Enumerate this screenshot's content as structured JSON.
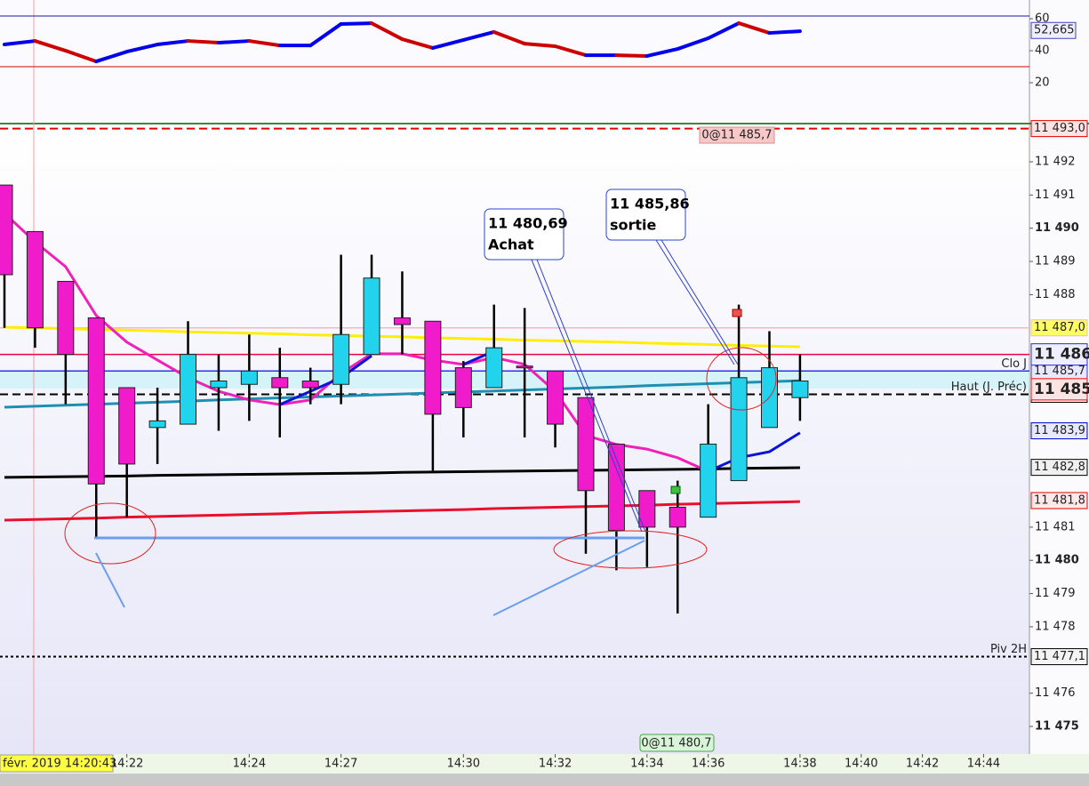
{
  "chart_data": [
    {
      "type": "line",
      "values": [
        43.9,
        46.1,
        40.0,
        33.3,
        39.4,
        43.9,
        46.1,
        45.0,
        46.1,
        43.3,
        43.3,
        56.7,
        57.2,
        47.2,
        41.7,
        46.7,
        51.7,
        44.4,
        42.8,
        37.2,
        37.2,
        36.7,
        41.1,
        47.8,
        57.2,
        51.1,
        52.2
      ],
      "up_color": "#0000ee",
      "down_color": "#cc0000",
      "ylim": [
        -5,
        71.7
      ],
      "yticks": [
        20,
        40,
        60
      ],
      "hlines": [
        {
          "value": 61.7,
          "color": "#1a1a9a"
        },
        {
          "value": 30,
          "color": "#cc0000"
        }
      ],
      "current": {
        "value": 52.665,
        "label": "52,665"
      }
    },
    {
      "type": "candlestick",
      "categories": [
        null,
        null,
        null,
        null,
        "14:22",
        null,
        null,
        null,
        "14:24",
        null,
        null,
        "14:27",
        null,
        null,
        null,
        "14:30",
        null,
        null,
        "14:32",
        null,
        null,
        "14:34",
        null,
        "14:36",
        null,
        null,
        "14:38",
        null,
        "14:40",
        null,
        "14:42",
        null,
        "14:44"
      ],
      "date_label": "févr. 2019 14:20:43",
      "open": [
        11491.3,
        11489.9,
        11488.4,
        11487.3,
        11485.2,
        11484.0,
        11484.1,
        11485.2,
        11485.3,
        11485.5,
        11485.4,
        11485.3,
        11486.2,
        11487.3,
        11487.2,
        11485.8,
        11485.2,
        11485.85,
        11485.7,
        11484.9,
        11483.5,
        11482.1,
        11481.6,
        11481.3,
        11482.4,
        11484.0,
        11484.9,
        null,
        null,
        null,
        null,
        null,
        null
      ],
      "high": [
        11491.3,
        11489.9,
        11488.4,
        11487.3,
        11485.2,
        11485.2,
        11487.2,
        11486.2,
        11486.8,
        11486.4,
        11485.8,
        11489.2,
        11489.2,
        11488.7,
        11487.2,
        11486.0,
        11487.7,
        11487.6,
        11485.7,
        11484.9,
        11483.5,
        11482.1,
        11482.4,
        11484.7,
        11487.7,
        11486.9,
        11486.2,
        null,
        null,
        null,
        null,
        null,
        null
      ],
      "low": [
        11487.0,
        11486.4,
        11484.7,
        11480.7,
        11481.3,
        11482.9,
        11484.1,
        11483.9,
        11484.2,
        11483.7,
        11484.7,
        11484.7,
        11486.2,
        11486.2,
        11482.7,
        11483.7,
        11485.2,
        11483.7,
        11483.4,
        11480.2,
        11479.7,
        11479.8,
        11478.4,
        11481.3,
        11482.4,
        11484.0,
        11484.2,
        null,
        null,
        null,
        null,
        null,
        null
      ],
      "close": [
        11488.6,
        11487.0,
        11486.2,
        11482.3,
        11482.9,
        11484.2,
        11486.2,
        11485.4,
        11485.7,
        11485.2,
        11485.2,
        11486.8,
        11488.5,
        11487.1,
        11484.4,
        11484.6,
        11486.4,
        11485.8,
        11484.1,
        11482.1,
        11480.9,
        11481.0,
        11481.0,
        11483.5,
        11485.5,
        11485.8,
        11485.4,
        null,
        null,
        null,
        null,
        null,
        null
      ],
      "up_color": "#22d3ee",
      "down_color": "#f01ccc",
      "overlays": [
        {
          "color": "#ffee00",
          "values": [
            11487.02,
            11487.0,
            11486.98,
            11486.95,
            11486.93,
            11486.91,
            11486.88,
            11486.86,
            11486.84,
            11486.82,
            11486.79,
            11486.77,
            11486.75,
            11486.73,
            11486.7,
            11486.68,
            11486.66,
            11486.63,
            11486.61,
            11486.59,
            11486.57,
            11486.54,
            11486.52,
            11486.5,
            11486.47,
            11486.45,
            11486.43
          ]
        },
        {
          "color": "#1e8fb0",
          "values": [
            11484.61,
            11484.64,
            11484.67,
            11484.7,
            11484.73,
            11484.76,
            11484.79,
            11484.83,
            11484.86,
            11484.89,
            11484.92,
            11484.95,
            11484.98,
            11485.01,
            11485.04,
            11485.07,
            11485.1,
            11485.13,
            11485.16,
            11485.19,
            11485.22,
            11485.26,
            11485.29,
            11485.32,
            11485.35,
            11485.38,
            11485.41
          ]
        },
        {
          "color": "#000000",
          "values": [
            11482.5,
            11482.51,
            11482.52,
            11482.53,
            11482.54,
            11482.56,
            11482.57,
            11482.58,
            11482.59,
            11482.6,
            11482.61,
            11482.62,
            11482.63,
            11482.65,
            11482.66,
            11482.67,
            11482.68,
            11482.69,
            11482.7,
            11482.71,
            11482.72,
            11482.73,
            11482.74,
            11482.75,
            11482.77,
            11482.78,
            11482.79
          ]
        },
        {
          "color": "#e8102c",
          "values": [
            11481.21,
            11481.23,
            11481.25,
            11481.27,
            11481.3,
            11481.32,
            11481.34,
            11481.36,
            11481.38,
            11481.4,
            11481.43,
            11481.45,
            11481.47,
            11481.49,
            11481.51,
            11481.53,
            11481.56,
            11481.58,
            11481.6,
            11481.62,
            11481.64,
            11481.66,
            11481.69,
            11481.71,
            11481.73,
            11481.75,
            11481.77
          ]
        },
        {
          "color": "#f020b8",
          "values": [
            11490.45,
            11489.59,
            11488.84,
            11487.37,
            11486.57,
            11486.03,
            11485.5,
            11485.09,
            11484.83,
            11484.69,
            11484.83,
            11485.63,
            11486.22,
            11486.22,
            11486.03,
            11485.9,
            11486.11,
            11485.9,
            11485.09,
            11483.76,
            11483.49,
            11483.35,
            11483.09,
            11482.68,
            null,
            null,
            null
          ]
        },
        {
          "color": "#0a14d8",
          "values": [
            null,
            null,
            null,
            null,
            null,
            null,
            null,
            null,
            null,
            11484.69,
            11485.09,
            11485.5,
            11486.16,
            null,
            null,
            11485.9,
            11486.3,
            null,
            null,
            null,
            null,
            null,
            null,
            11482.68,
            11483.09,
            11483.27,
            11483.84
          ]
        }
      ],
      "ylim": [
        11474.17,
        11493.07
      ],
      "yticks": [
        {
          "value": 11475,
          "label": "11 475"
        },
        {
          "value": 11476,
          "label": "11 476"
        },
        {
          "value": 11478,
          "label": "11 478"
        },
        {
          "value": 11479,
          "label": "11 479"
        },
        {
          "value": 11480,
          "label": "11 480"
        },
        {
          "value": 11481,
          "label": "11 481"
        },
        {
          "value": 11488,
          "label": "11 488"
        },
        {
          "value": 11489,
          "label": "11 489"
        },
        {
          "value": 11490,
          "label": "11 490"
        },
        {
          "value": 11491,
          "label": "11 491"
        },
        {
          "value": 11492,
          "label": "11 492"
        }
      ],
      "levels": [
        {
          "value": 11493.0,
          "label": "11 493,0",
          "color": "#e00000",
          "style": "dashed",
          "box": "#fde4e4"
        },
        {
          "value": 11487.0,
          "label": "11 487,0",
          "color": "#f0b8c0",
          "style": "solid",
          "box": "#ffff66"
        },
        {
          "value": 11485.7,
          "label": "11 485,7",
          "name": "Clo J",
          "color": "#3030ee",
          "style": "solid",
          "box": "#e8e8ff"
        },
        {
          "value": 11486.2,
          "label": "11 486",
          "color": "#e8003c",
          "text_color": "#2828e0",
          "style": "solid",
          "box": "#eeeeff",
          "big": true
        },
        {
          "value": 11485.0,
          "label": "11 485,0",
          "name": "Haut (J. Préc)",
          "color": "#000000",
          "style": "dashed",
          "box": "#f2f2f2"
        },
        {
          "value": 11483.9,
          "label": "11 483,9",
          "color": "#0000cc",
          "style": "none",
          "box": "#e8e8ff"
        },
        {
          "value": 11482.8,
          "label": "11 482,8",
          "color": "#000000",
          "style": "none",
          "box": "#f0f0f0"
        },
        {
          "value": 11481.8,
          "label": "11 481,8",
          "color": "#e00000",
          "style": "none",
          "box": "#ffe8e8"
        },
        {
          "value": 11477.1,
          "label": "11 477,1",
          "name": "Piv 2H",
          "color": "#000000",
          "style": "dotted",
          "box": "#f4f4f4"
        },
        {
          "value": 11485.15,
          "label": "11 485",
          "color": "#ff0000",
          "style": "none",
          "box": "#ffe4e4",
          "big": true
        }
      ],
      "annotations": [
        {
          "lines": [
            "11 480,69",
            "Achat"
          ]
        },
        {
          "lines": [
            "11 485,86",
            "sortie"
          ]
        }
      ],
      "orders": [
        "0@11 485,7",
        "0@11 480,7"
      ]
    }
  ]
}
